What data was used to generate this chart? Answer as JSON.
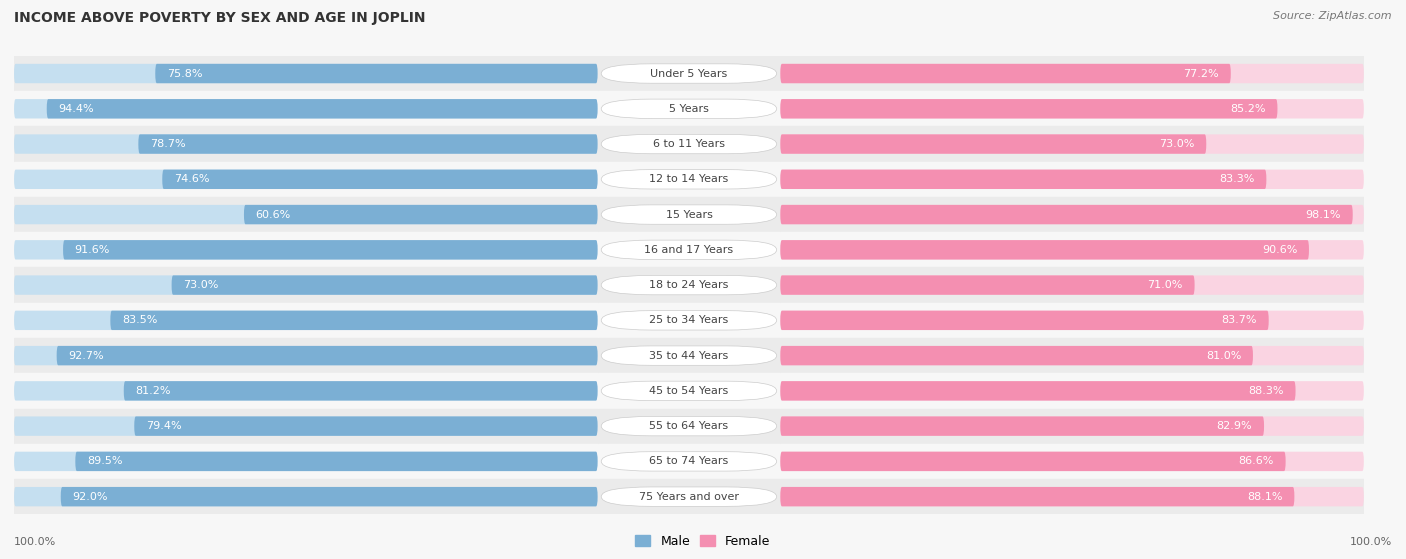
{
  "title": "INCOME ABOVE POVERTY BY SEX AND AGE IN JOPLIN",
  "source": "Source: ZipAtlas.com",
  "categories": [
    "Under 5 Years",
    "5 Years",
    "6 to 11 Years",
    "12 to 14 Years",
    "15 Years",
    "16 and 17 Years",
    "18 to 24 Years",
    "25 to 34 Years",
    "35 to 44 Years",
    "45 to 54 Years",
    "55 to 64 Years",
    "65 to 74 Years",
    "75 Years and over"
  ],
  "male_values": [
    75.8,
    94.4,
    78.7,
    74.6,
    60.6,
    91.6,
    73.0,
    83.5,
    92.7,
    81.2,
    79.4,
    89.5,
    92.0
  ],
  "female_values": [
    77.2,
    85.2,
    73.0,
    83.3,
    98.1,
    90.6,
    71.0,
    83.7,
    81.0,
    88.3,
    82.9,
    86.6,
    88.1
  ],
  "male_color": "#7bafd4",
  "male_light_color": "#c5dff0",
  "female_color": "#f48fb1",
  "female_light_color": "#fad4e2",
  "background_color": "#f7f7f7",
  "bar_bg_color": "#e2e2e2",
  "row_alt_color": "#eeeeee",
  "legend_male": "Male",
  "legend_female": "Female",
  "title_fontsize": 10,
  "label_fontsize": 8,
  "value_fontsize": 8,
  "source_fontsize": 8,
  "cat_fontsize": 8
}
